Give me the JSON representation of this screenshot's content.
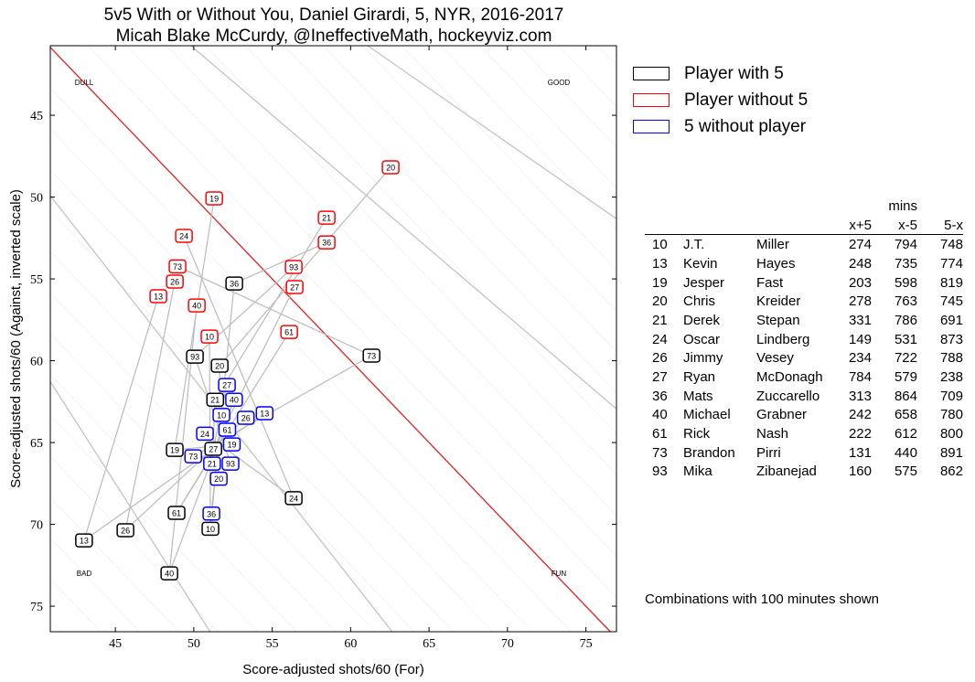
{
  "title_line1": "5v5 With or Without You, Daniel Girardi, 5, NYR, 2016-2017",
  "title_line2": "Micah Blake McCurdy, @IneffectiveMath, hockeyviz.com",
  "legend": [
    {
      "label": "Player with 5",
      "color": "#000000"
    },
    {
      "label": "Player without 5",
      "color": "#ff0000"
    },
    {
      "label": "5 without player",
      "color": "#0000ff"
    }
  ],
  "table": {
    "group_header": "mins",
    "headers": [
      "x+5",
      "x-5",
      "5-x"
    ],
    "rows": [
      [
        "10",
        "J.T.",
        "Miller",
        "274",
        "794",
        "748"
      ],
      [
        "13",
        "Kevin",
        "Hayes",
        "248",
        "735",
        "774"
      ],
      [
        "19",
        "Jesper",
        "Fast",
        "203",
        "598",
        "819"
      ],
      [
        "20",
        "Chris",
        "Kreider",
        "278",
        "763",
        "745"
      ],
      [
        "21",
        "Derek",
        "Stepan",
        "331",
        "786",
        "691"
      ],
      [
        "24",
        "Oscar",
        "Lindberg",
        "149",
        "531",
        "873"
      ],
      [
        "26",
        "Jimmy",
        "Vesey",
        "234",
        "722",
        "788"
      ],
      [
        "27",
        "Ryan",
        "McDonagh",
        "784",
        "579",
        "238"
      ],
      [
        "36",
        "Mats",
        "Zuccarello",
        "313",
        "864",
        "709"
      ],
      [
        "40",
        "Michael",
        "Grabner",
        "242",
        "658",
        "780"
      ],
      [
        "61",
        "Rick",
        "Nash",
        "222",
        "612",
        "800"
      ],
      [
        "73",
        "Brandon",
        "Pirri",
        "131",
        "440",
        "891"
      ],
      [
        "93",
        "Mika",
        "Zibanejad",
        "160",
        "575",
        "862"
      ]
    ]
  },
  "note": "Combinations with 100 minutes shown",
  "chart_data": {
    "type": "scatter",
    "xlabel": "Score-adjusted shots/60 (For)",
    "ylabel": "Score-adjusted shots/60 (Against, inverted scale)",
    "xlim": [
      40.85,
      76.95
    ],
    "ylim": [
      40.75,
      76.56
    ],
    "y_inverted": true,
    "xticks": [
      45,
      50,
      55,
      60,
      65,
      70,
      75
    ],
    "yticks": [
      45,
      50,
      55,
      60,
      65,
      70,
      75
    ],
    "ratio_lines": [
      0.667,
      0.818,
      1.0,
      1.222,
      1.5
    ],
    "break_even_ratio": 1.0,
    "quadrant_labels": {
      "top_left": "DULL",
      "top_right": "GOOD",
      "bottom_left": "BAD",
      "bottom_right": "FUN"
    },
    "players": {
      "10": {
        "with": [
          51.06,
          70.25
        ],
        "without": [
          51.0,
          58.52
        ],
        "five_without": [
          51.76,
          63.16
        ]
      },
      "13": {
        "with": [
          43.0,
          70.98
        ],
        "without": [
          47.74,
          55.95
        ],
        "five_without": [
          54.27,
          63.21
        ]
      },
      "19": {
        "with": [
          49.14,
          65.45
        ],
        "without": [
          51.3,
          50.08
        ],
        "five_without": [
          52.17,
          64.94
        ]
      },
      "20": {
        "with": [
          51.65,
          60.3
        ],
        "without": [
          62.55,
          48.18
        ],
        "five_without": [
          51.59,
          66.9
        ]
      },
      "21": {
        "with": [
          51.47,
          62.43
        ],
        "without": [
          58.47,
          51.26
        ],
        "five_without": [
          51.3,
          66.06
        ]
      },
      "24": {
        "with": [
          56.37,
          68.4
        ],
        "without": [
          49.37,
          52.37
        ],
        "five_without": [
          50.71,
          64.55
        ]
      },
      "26": {
        "with": [
          45.64,
          70.36
        ],
        "without": [
          48.79,
          55.11
        ],
        "five_without": [
          53.34,
          63.49
        ]
      },
      "27": {
        "with": [
          51.3,
          66.06
        ],
        "without": [
          56.43,
          55.5
        ],
        "five_without": [
          52.11,
          61.87
        ]
      },
      "36": {
        "with": [
          52.58,
          55.28
        ],
        "without": [
          58.47,
          52.77
        ],
        "five_without": [
          51.12,
          69.36
        ]
      },
      "40": {
        "with": [
          48.44,
          72.99
        ],
        "without": [
          50.19,
          56.62
        ],
        "five_without": [
          52.46,
          62.65
        ]
      },
      "61": {
        "with": [
          48.9,
          69.3
        ],
        "without": [
          56.08,
          58.24
        ],
        "five_without": [
          52.35,
          63.83
        ]
      },
      "73": {
        "with": [
          61.33,
          59.69
        ],
        "without": [
          48.96,
          54.39
        ],
        "five_without": [
          50.13,
          65.84
        ]
      },
      "93": {
        "with": [
          50.07,
          59.75
        ],
        "without": [
          56.37,
          54.27
        ],
        "five_without": [
          51.88,
          66.06
        ]
      }
    }
  }
}
